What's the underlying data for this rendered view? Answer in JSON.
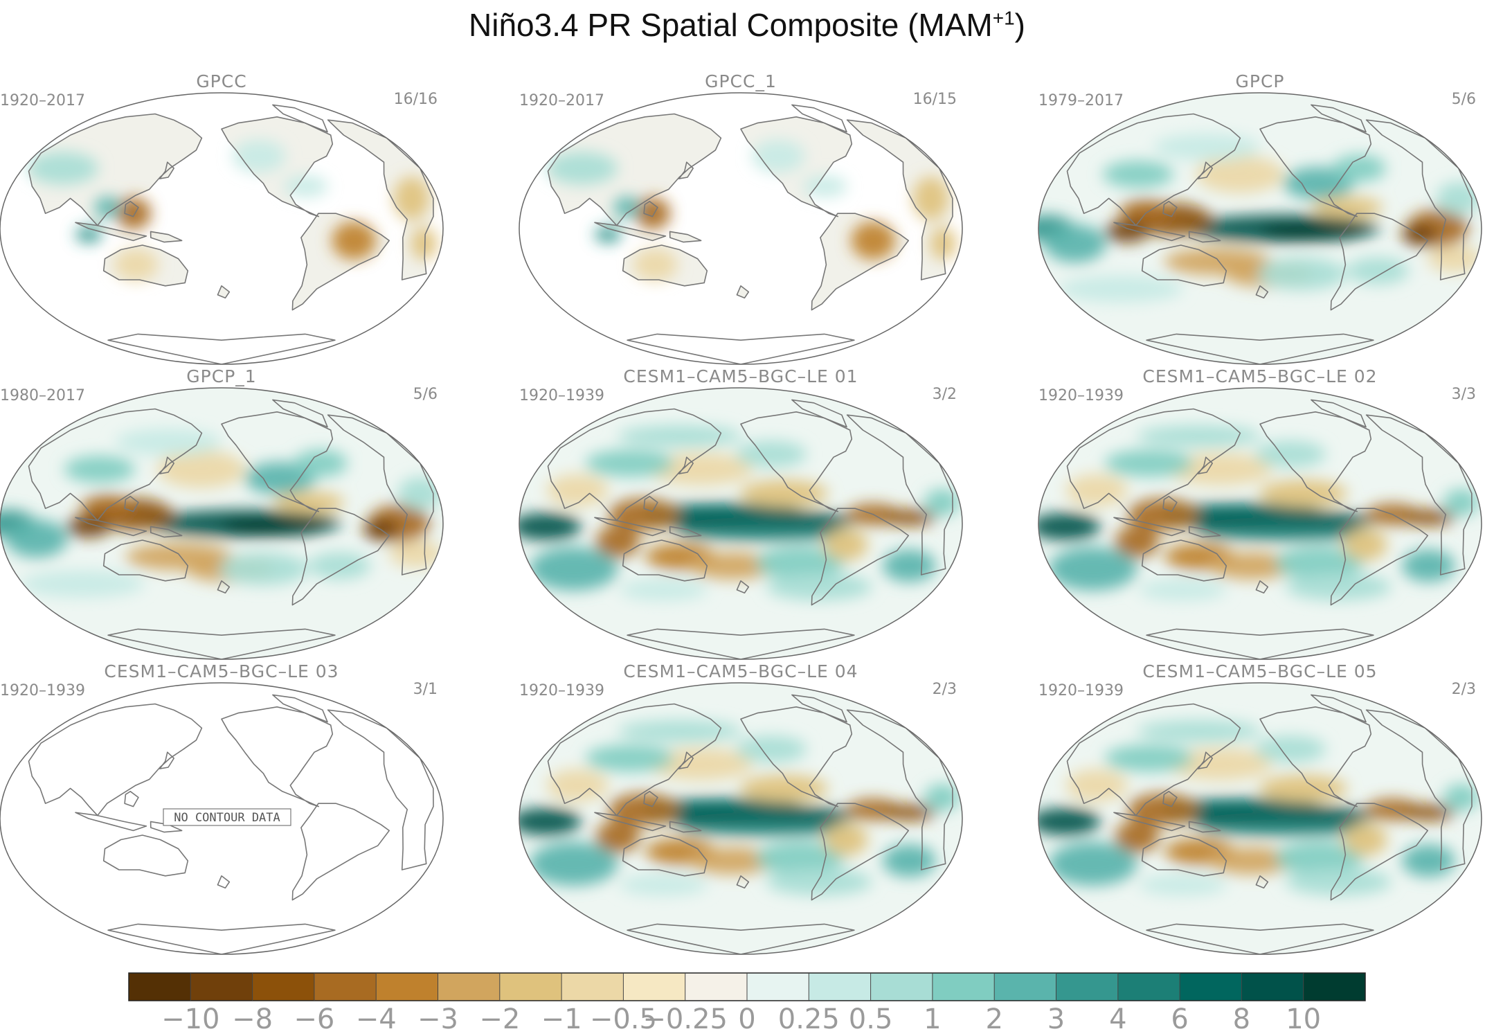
{
  "title": {
    "prefix": "Niño3.4 PR Spatial Composite (MAM",
    "superscript": "+1",
    "suffix": ")"
  },
  "panels": [
    {
      "title": "GPCC",
      "period": "1920–2017",
      "count": "16/16",
      "pattern": "landonly"
    },
    {
      "title": "GPCC_1",
      "period": "1920–2017",
      "count": "16/15",
      "pattern": "landonly"
    },
    {
      "title": "GPCP",
      "period": "1979–2017",
      "count": "5/6",
      "pattern": "obs"
    },
    {
      "title": "GPCP_1",
      "period": "1980–2017",
      "count": "5/6",
      "pattern": "obs"
    },
    {
      "title": "CESM1–CAM5–BGC–LE 01",
      "period": "1920–1939",
      "count": "3/2",
      "pattern": "model"
    },
    {
      "title": "CESM1–CAM5–BGC–LE 02",
      "period": "1920–1939",
      "count": "3/3",
      "pattern": "model"
    },
    {
      "title": "CESM1–CAM5–BGC–LE 03",
      "period": "1920–1939",
      "count": "3/1",
      "pattern": "empty",
      "note": "NO CONTOUR DATA"
    },
    {
      "title": "CESM1–CAM5–BGC–LE 04",
      "period": "1920–1939",
      "count": "2/3",
      "pattern": "model"
    },
    {
      "title": "CESM1–CAM5–BGC–LE 05",
      "period": "1920–1939",
      "count": "2/3",
      "pattern": "model"
    }
  ],
  "colorbar": {
    "colors": [
      "#543005",
      "#70400b",
      "#8c510a",
      "#a86b22",
      "#bf812d",
      "#d1a55e",
      "#dfc27d",
      "#ecd8a7",
      "#f6e8c3",
      "#f5f1e8",
      "#e7f4f1",
      "#c7eae5",
      "#a8ddd5",
      "#80cdc1",
      "#5ab4ac",
      "#35978f",
      "#1c7f76",
      "#01665e",
      "#01524a",
      "#003c30"
    ],
    "labels": [
      "−10",
      "−8",
      "−6",
      "−4",
      "−3",
      "−2",
      "−1",
      "−0.5",
      "−0.25",
      "0",
      "0.25",
      "0.5",
      "1",
      "2",
      "3",
      "4",
      "6",
      "8",
      "10"
    ]
  },
  "colors": {
    "coastline": "#777777",
    "label_gray": "#8a8a8a"
  }
}
